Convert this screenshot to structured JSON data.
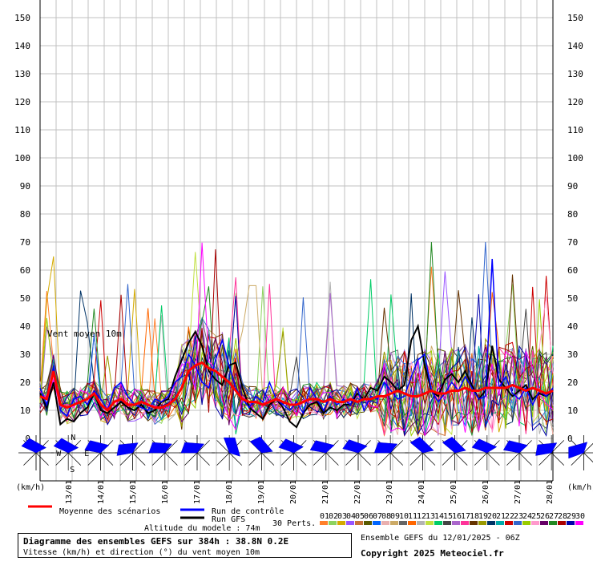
{
  "chart_data": {
    "type": "line",
    "title": "Diagramme des ensembles GEFS sur 384h : 38.8N 0.2E",
    "subtitle": "Vitesse (km/h) et direction (°) du vent moyen 10m",
    "inner_label": "Vent moyen 10m",
    "y_unit": "(km/h)",
    "ylim": [
      0,
      150
    ],
    "yticks": [
      0,
      10,
      20,
      30,
      40,
      50,
      60,
      70,
      80,
      90,
      100,
      110,
      120,
      130,
      140,
      150
    ],
    "x_tick_labels": [
      "13/01",
      "14/01",
      "15/01",
      "16/01",
      "17/01",
      "18/01",
      "19/01",
      "20/01",
      "21/01",
      "22/01",
      "23/01",
      "24/01",
      "25/01",
      "26/01",
      "27/01",
      "28/01"
    ],
    "grid": true,
    "legend": {
      "mean": "Moyenne des scénarios",
      "control": "Run de contrôle",
      "gfs": "Run GFS",
      "perts_label": "30 Perts.",
      "pert_ids": [
        "01",
        "02",
        "03",
        "04",
        "05",
        "06",
        "07",
        "08",
        "09",
        "10",
        "11",
        "12",
        "13",
        "14",
        "15",
        "16",
        "17",
        "18",
        "19",
        "20",
        "21",
        "22",
        "23",
        "24",
        "25",
        "26",
        "27",
        "28",
        "29",
        "30"
      ],
      "pert_colors": [
        "#ff7f2a",
        "#8dd35f",
        "#d4aa00",
        "#9955ff",
        "#c87137",
        "#5a5a00",
        "#0066ff",
        "#e9afaf",
        "#ccaa66",
        "#666666",
        "#ff6600",
        "#b3b3b3",
        "#c0e040",
        "#00cc66",
        "#444444",
        "#aa66cc",
        "#ff3399",
        "#663300",
        "#999900",
        "#003366",
        "#00aaaa",
        "#cc0000",
        "#3366cc",
        "#99cc00",
        "#ff99cc",
        "#660066",
        "#228822",
        "#aa0000",
        "#0000aa",
        "#ff00ff"
      ]
    },
    "series": [
      {
        "name": "Moyenne des scénarios",
        "color": "#ff0000",
        "values": [
          15,
          14,
          24,
          12,
          11,
          12,
          13,
          14,
          16,
          12,
          10,
          13,
          14,
          12,
          12,
          13,
          12,
          11,
          11,
          12,
          14,
          18,
          24,
          26,
          27,
          25,
          24,
          22,
          20,
          17,
          14,
          13,
          13,
          12,
          13,
          14,
          13,
          12,
          12,
          13,
          14,
          14,
          13,
          14,
          13,
          13,
          14,
          13,
          14,
          14,
          15,
          15,
          16,
          17,
          16,
          15,
          15,
          16,
          17,
          16,
          16,
          17,
          17,
          18,
          17,
          17,
          18,
          18,
          18,
          18,
          19,
          18,
          17,
          18,
          17,
          16,
          17
        ]
      },
      {
        "name": "Run de contrôle",
        "color": "#0000ff",
        "values": [
          18,
          12,
          26,
          10,
          8,
          14,
          15,
          12,
          17,
          14,
          10,
          18,
          20,
          15,
          12,
          11,
          10,
          14,
          13,
          15,
          20,
          22,
          30,
          26,
          20,
          18,
          28,
          35,
          26,
          18,
          14,
          11,
          15,
          13,
          20,
          14,
          12,
          10,
          13,
          9,
          18,
          14,
          10,
          15,
          12,
          14,
          12,
          18,
          10,
          15,
          14,
          20,
          17,
          14,
          15,
          22,
          28,
          30,
          17,
          13,
          16,
          20,
          17,
          22,
          18,
          14,
          15,
          64,
          18,
          22,
          16,
          14,
          18,
          12,
          17,
          15,
          18
        ]
      },
      {
        "name": "Run GFS",
        "color": "#000000",
        "values": [
          16,
          11,
          20,
          5,
          7,
          6,
          9,
          11,
          16,
          10,
          9,
          11,
          13,
          11,
          10,
          12,
          9,
          10,
          13,
          14,
          22,
          28,
          34,
          38,
          33,
          24,
          21,
          19,
          26,
          27,
          18,
          11,
          9,
          7,
          12,
          14,
          11,
          6,
          4,
          9,
          12,
          13,
          9,
          11,
          10,
          12,
          12,
          16,
          14,
          18,
          17,
          22,
          20,
          17,
          19,
          35,
          40,
          26,
          17,
          15,
          21,
          23,
          20,
          24,
          19,
          14,
          17,
          33,
          21,
          18,
          15,
          17,
          19,
          14,
          16,
          15,
          17
        ]
      }
    ]
  },
  "info": {
    "title": "Diagramme des ensembles GEFS sur 384h : 38.8N 0.2E",
    "subtitle": "Vitesse (km/h) et direction (°) du vent moyen 10m",
    "altitude": "Altitude du modele : 74m",
    "ensemble": "Ensemble GEFS du 12/01/2025 - 06Z",
    "copyright": "Copyright 2025 Meteociel.fr"
  },
  "wind": {
    "compass_labels": [
      "N",
      "S",
      "W",
      "E"
    ],
    "sector_count": 16,
    "directions_deg": [
      315,
      315,
      300,
      280,
      290,
      290,
      0,
      335,
      310,
      300,
      305,
      290,
      330,
      330,
      310,
      300,
      280,
      270
    ]
  }
}
